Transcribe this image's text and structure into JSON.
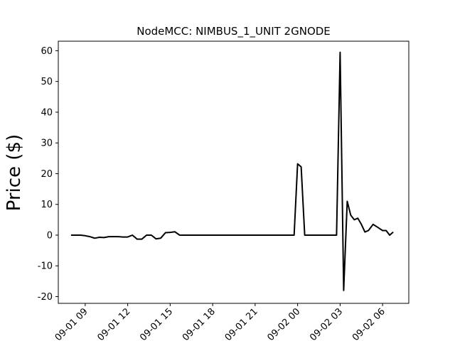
{
  "chart_data": {
    "type": "line",
    "title": "NodeMCC: NIMBUS_1_UNIT 2GNODE",
    "xlabel": "",
    "ylabel": "Price ($)",
    "x_tick_labels": [
      "09-01 09",
      "09-01 12",
      "09-01 15",
      "09-01 18",
      "09-01 21",
      "09-02 00",
      "09-02 03",
      "09-02 06"
    ],
    "y_tick_labels": [
      "-20",
      "-10",
      "0",
      "10",
      "20",
      "30",
      "40",
      "50",
      "60"
    ],
    "x_tick_hours": [
      9,
      12,
      15,
      18,
      21,
      24,
      27,
      30
    ],
    "y_ticks": [
      -20,
      -10,
      0,
      10,
      20,
      30,
      40,
      50,
      60
    ],
    "xlim_hours": [
      7.1,
      31.85
    ],
    "ylim": [
      -22.2,
      63.1
    ],
    "grid": false,
    "line_color": "#000000",
    "series": [
      {
        "x_hours": [
          8.0,
          8.33,
          8.67,
          9.0,
          9.33,
          9.67,
          10.0,
          10.33,
          10.67,
          11.0,
          11.33,
          11.67,
          12.0,
          12.33,
          12.67,
          13.0,
          13.33,
          13.67,
          14.0,
          14.33,
          14.67,
          15.0,
          15.33,
          15.67,
          16.0,
          16.5,
          17.0,
          17.5,
          18.0,
          18.5,
          19.0,
          19.5,
          20.0,
          20.5,
          21.0,
          21.5,
          22.0,
          22.5,
          23.0,
          23.5,
          23.75,
          24.0,
          24.25,
          24.5,
          24.75,
          25.0,
          25.5,
          26.0,
          26.5,
          26.75,
          27.0,
          27.25,
          27.5,
          27.75,
          28.0,
          28.25,
          28.5,
          28.75,
          29.0,
          29.33,
          29.67,
          30.0,
          30.25,
          30.5,
          30.75
        ],
        "values": [
          0.0,
          0.0,
          0.0,
          -0.2,
          -0.5,
          -1.0,
          -0.7,
          -0.8,
          -0.5,
          -0.5,
          -0.5,
          -0.6,
          -0.6,
          0.0,
          -1.3,
          -1.3,
          0.0,
          0.0,
          -1.2,
          -1.0,
          0.8,
          0.9,
          1.1,
          0.0,
          0.0,
          0.0,
          0.0,
          0.0,
          0.0,
          0.0,
          0.0,
          0.0,
          0.0,
          0.0,
          0.0,
          0.0,
          0.0,
          0.0,
          0.0,
          0.0,
          0.0,
          23.2,
          22.2,
          0.0,
          0.0,
          0.0,
          0.0,
          0.0,
          0.0,
          0.0,
          59.5,
          -18.0,
          11.0,
          6.5,
          5.0,
          5.5,
          3.5,
          1.0,
          1.5,
          3.5,
          2.5,
          1.5,
          1.5,
          0.0,
          1.0
        ]
      }
    ]
  }
}
